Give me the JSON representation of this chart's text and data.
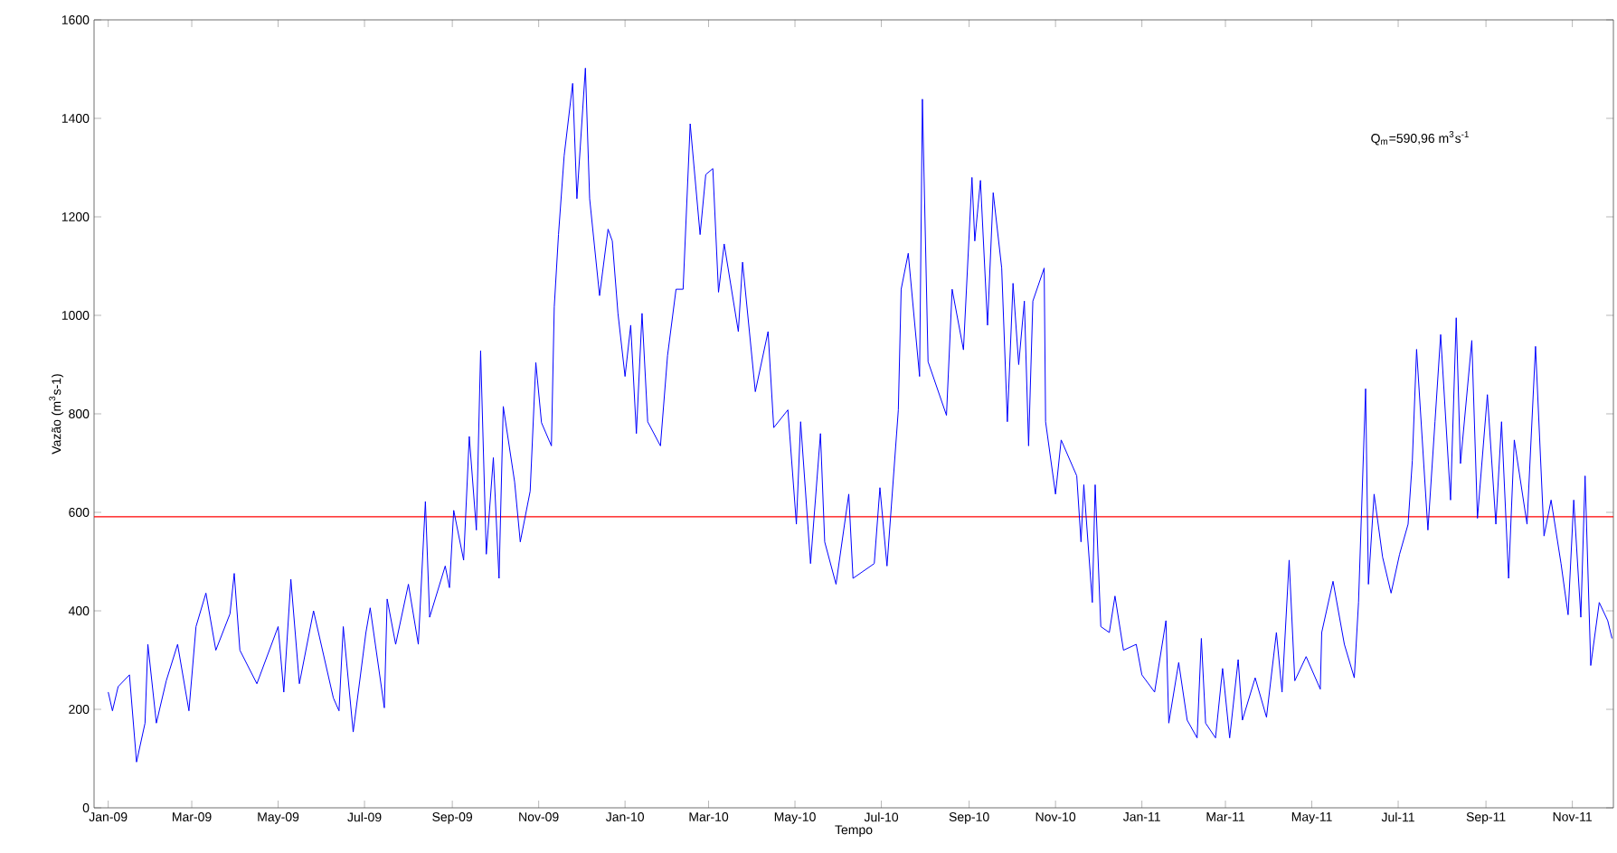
{
  "chart_data": {
    "type": "line",
    "xlabel": "Tempo",
    "ylabel": "Vazão (m$^{3}$s-1)",
    "annotations": [
      "Q$_{m}$=590,96 m$^{3}$s$^{-1}$"
    ],
    "xlim": [
      "2008-12-22",
      "2011-11-30"
    ],
    "xticks": [
      {
        "value": "2009-01-01",
        "label": "Jan-09"
      },
      {
        "value": "2009-03-01",
        "label": "Mar-09"
      },
      {
        "value": "2009-05-01",
        "label": "May-09"
      },
      {
        "value": "2009-07-01",
        "label": "Jul-09"
      },
      {
        "value": "2009-09-01",
        "label": "Sep-09"
      },
      {
        "value": "2009-11-01",
        "label": "Nov-09"
      },
      {
        "value": "2010-01-01",
        "label": "Jan-10"
      },
      {
        "value": "2010-03-01",
        "label": "Mar-10"
      },
      {
        "value": "2010-05-01",
        "label": "May-10"
      },
      {
        "value": "2010-07-01",
        "label": "Jul-10"
      },
      {
        "value": "2010-09-01",
        "label": "Sep-10"
      },
      {
        "value": "2010-11-01",
        "label": "Nov-10"
      },
      {
        "value": "2011-01-01",
        "label": "Jan-11"
      },
      {
        "value": "2011-03-01",
        "label": "Mar-11"
      },
      {
        "value": "2011-05-01",
        "label": "May-11"
      },
      {
        "value": "2011-07-01",
        "label": "Jul-11"
      },
      {
        "value": "2011-09-01",
        "label": "Sep-11"
      },
      {
        "value": "2011-11-01",
        "label": "Nov-11"
      }
    ],
    "ylim": [
      0,
      1600
    ],
    "yticks": [
      0,
      200,
      400,
      600,
      800,
      1000,
      1200,
      1400,
      1600
    ],
    "grid": false,
    "marker": "none",
    "line_style": "solid",
    "ref_lines": [
      {
        "axis": "y",
        "value": 590.96,
        "color": "#ff0000"
      }
    ],
    "series": [
      {
        "color": "#0000ff",
        "x": [
          "2009-01-01",
          "2009-01-04",
          "2009-01-08",
          "2009-01-16",
          "2009-01-21",
          "2009-01-27",
          "2009-01-29",
          "2009-02-04",
          "2009-02-11",
          "2009-02-19",
          "2009-02-27",
          "2009-03-04",
          "2009-03-11",
          "2009-03-18",
          "2009-03-28",
          "2009-03-31",
          "2009-04-04",
          "2009-04-16",
          "2009-05-01",
          "2009-05-05",
          "2009-05-10",
          "2009-05-16",
          "2009-05-26",
          "2009-06-09",
          "2009-06-13",
          "2009-06-16",
          "2009-06-23",
          "2009-07-02",
          "2009-07-05",
          "2009-07-15",
          "2009-07-17",
          "2009-07-23",
          "2009-08-01",
          "2009-08-08",
          "2009-08-13",
          "2009-08-16",
          "2009-08-27",
          "2009-08-30",
          "2009-09-02",
          "2009-09-09",
          "2009-09-13",
          "2009-09-18",
          "2009-09-21",
          "2009-09-25",
          "2009-09-30",
          "2009-10-04",
          "2009-10-07",
          "2009-10-15",
          "2009-10-19",
          "2009-10-26",
          "2009-10-30",
          "2009-11-03",
          "2009-11-10",
          "2009-11-12",
          "2009-11-15",
          "2009-11-19",
          "2009-11-25",
          "2009-11-28",
          "2009-12-04",
          "2009-12-07",
          "2009-12-14",
          "2009-12-20",
          "2009-12-23",
          "2009-12-27",
          "2010-01-01",
          "2010-01-05",
          "2010-01-09",
          "2010-01-13",
          "2010-01-17",
          "2010-01-26",
          "2010-01-31",
          "2010-02-06",
          "2010-02-11",
          "2010-02-16",
          "2010-02-23",
          "2010-02-27",
          "2010-03-04",
          "2010-03-08",
          "2010-03-12",
          "2010-03-22",
          "2010-03-25",
          "2010-04-03",
          "2010-04-12",
          "2010-04-16",
          "2010-04-26",
          "2010-05-02",
          "2010-05-05",
          "2010-05-12",
          "2010-05-19",
          "2010-05-22",
          "2010-05-30",
          "2010-06-08",
          "2010-06-11",
          "2010-06-26",
          "2010-06-30",
          "2010-07-05",
          "2010-07-13",
          "2010-07-15",
          "2010-07-20",
          "2010-07-28",
          "2010-07-30",
          "2010-08-03",
          "2010-08-16",
          "2010-08-20",
          "2010-08-28",
          "2010-09-03",
          "2010-09-05",
          "2010-09-09",
          "2010-09-14",
          "2010-09-18",
          "2010-09-24",
          "2010-09-28",
          "2010-10-02",
          "2010-10-06",
          "2010-10-10",
          "2010-10-13",
          "2010-10-16",
          "2010-10-24",
          "2010-10-25",
          "2010-11-01",
          "2010-11-05",
          "2010-11-16",
          "2010-11-19",
          "2010-11-21",
          "2010-11-27",
          "2010-11-29",
          "2010-12-03",
          "2010-12-09",
          "2010-12-13",
          "2010-12-19",
          "2010-12-28",
          "2011-01-01",
          "2011-01-10",
          "2011-01-18",
          "2011-01-20",
          "2011-01-27",
          "2011-02-02",
          "2011-02-09",
          "2011-02-12",
          "2011-02-15",
          "2011-02-22",
          "2011-02-27",
          "2011-03-04",
          "2011-03-10",
          "2011-03-13",
          "2011-03-22",
          "2011-03-30",
          "2011-04-06",
          "2011-04-10",
          "2011-04-15",
          "2011-04-19",
          "2011-04-27",
          "2011-05-07",
          "2011-05-08",
          "2011-05-16",
          "2011-05-24",
          "2011-05-31",
          "2011-06-03",
          "2011-06-08",
          "2011-06-10",
          "2011-06-14",
          "2011-06-20",
          "2011-06-26",
          "2011-07-02",
          "2011-07-08",
          "2011-07-11",
          "2011-07-14",
          "2011-07-22",
          "2011-07-27",
          "2011-07-31",
          "2011-08-07",
          "2011-08-11",
          "2011-08-14",
          "2011-08-22",
          "2011-08-26",
          "2011-09-02",
          "2011-09-08",
          "2011-09-12",
          "2011-09-17",
          "2011-09-21",
          "2011-09-30",
          "2011-10-06",
          "2011-10-12",
          "2011-10-17",
          "2011-10-24",
          "2011-10-29",
          "2011-11-02",
          "2011-11-07",
          "2011-11-10",
          "2011-11-14",
          "2011-11-20",
          "2011-11-26",
          "2011-11-29"
        ],
        "values": [
          235,
          197,
          246,
          270,
          93,
          172,
          332,
          172,
          258,
          332,
          197,
          368,
          436,
          320,
          394,
          476,
          320,
          252,
          368,
          235,
          464,
          252,
          400,
          223,
          197,
          368,
          154,
          356,
          406,
          203,
          424,
          332,
          454,
          332,
          622,
          387,
          491,
          447,
          604,
          503,
          754,
          564,
          928,
          515,
          711,
          466,
          815,
          662,
          540,
          643,
          904,
          782,
          735,
          1017,
          1164,
          1324,
          1471,
          1237,
          1502,
          1237,
          1040,
          1175,
          1151,
          1004,
          876,
          980,
          760,
          1004,
          784,
          735,
          918,
          1053,
          1053,
          1389,
          1164,
          1286,
          1298,
          1047,
          1145,
          967,
          1108,
          845,
          967,
          772,
          808,
          576,
          784,
          496,
          760,
          540,
          454,
          637,
          466,
          496,
          650,
          491,
          808,
          1053,
          1126,
          876,
          1439,
          906,
          797,
          1053,
          930,
          1280,
          1151,
          1274,
          980,
          1249,
          1096,
          784,
          1065,
          900,
          1029,
          735,
          1029,
          1096,
          784,
          637,
          747,
          674,
          540,
          656,
          417,
          656,
          368,
          356,
          430,
          320,
          332,
          270,
          235,
          380,
          172,
          295,
          178,
          142,
          344,
          172,
          142,
          283,
          142,
          301,
          178,
          264,
          184,
          356,
          235,
          503,
          258,
          307,
          241,
          356,
          460,
          332,
          264,
          417,
          851,
          454,
          637,
          509,
          436,
          515,
          576,
          705,
          931,
          564,
          784,
          961,
          625,
          995,
          699,
          949,
          588,
          839,
          576,
          784,
          466,
          747,
          576,
          937,
          552,
          625,
          496,
          392,
          625,
          387,
          674,
          289,
          417,
          380,
          344
        ]
      }
    ]
  }
}
